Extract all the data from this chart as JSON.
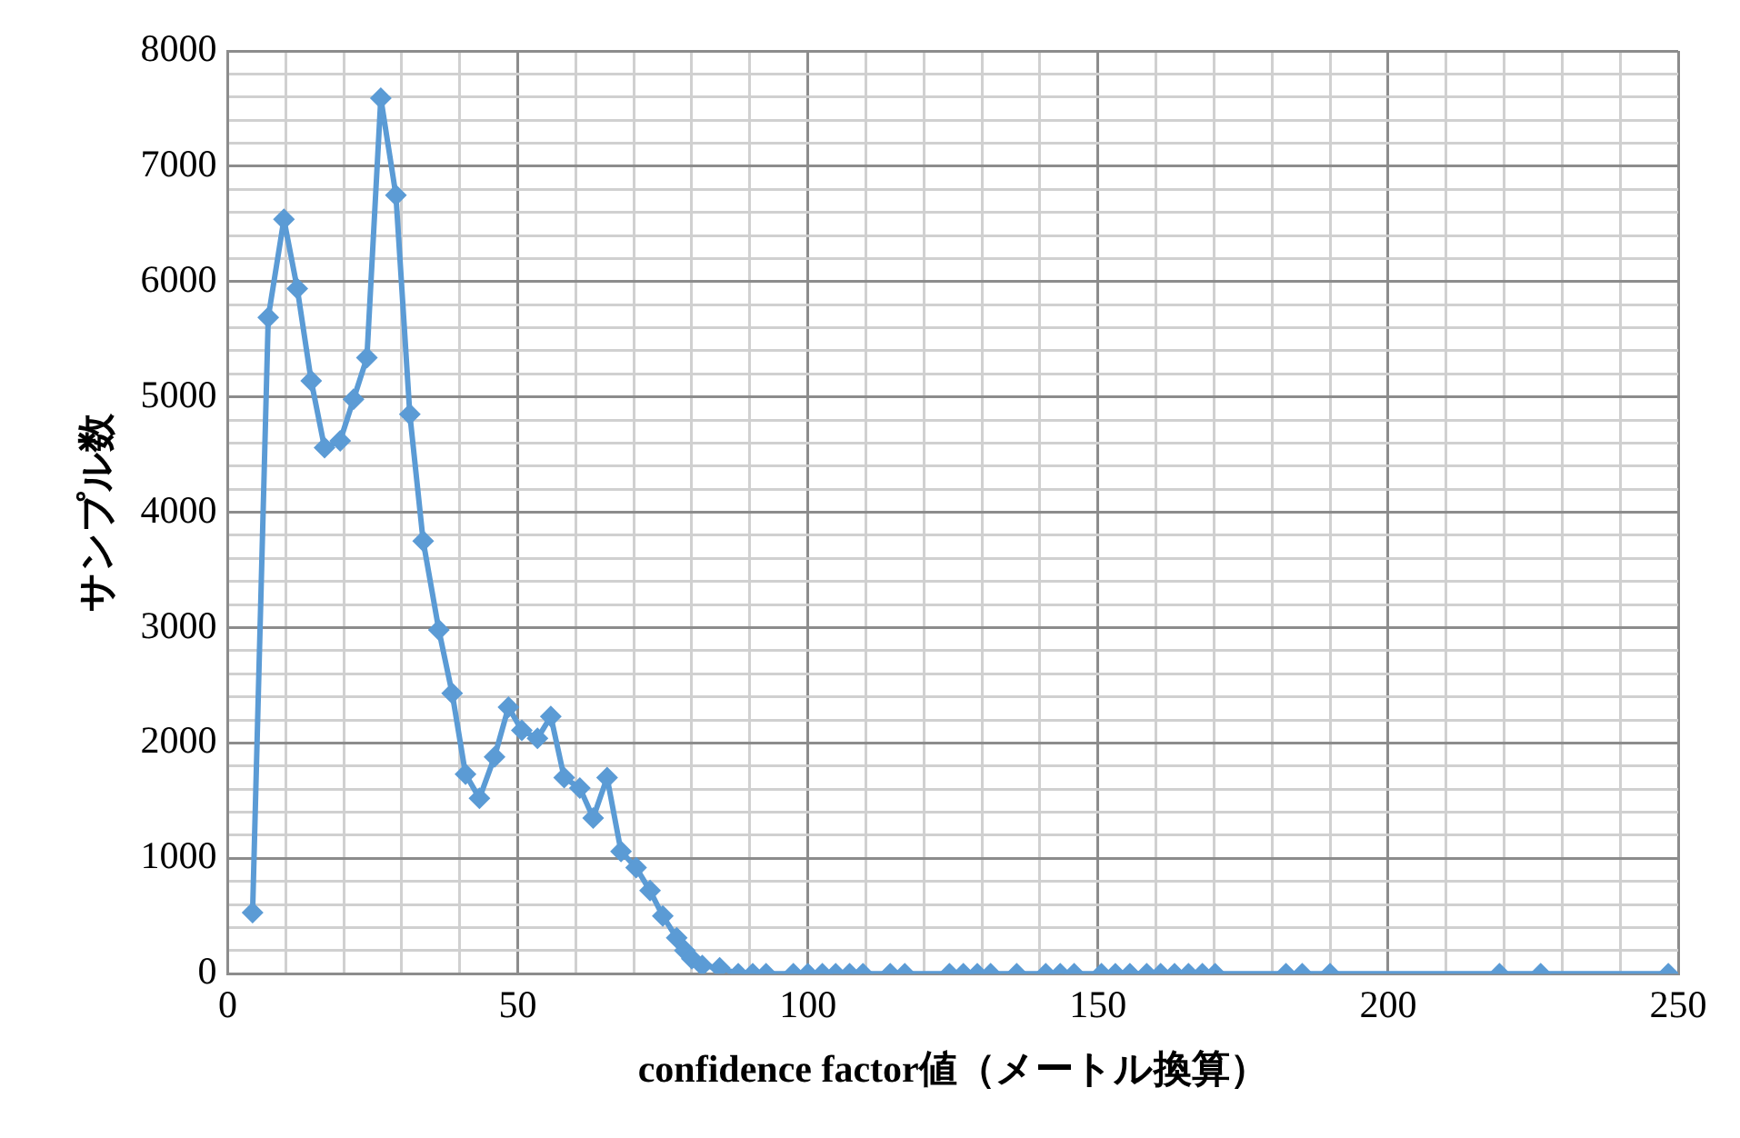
{
  "chart_data": {
    "type": "line",
    "xlabel": "confidence factor値（メートル換算）",
    "ylabel": "サンプル数",
    "x": [
      4.3,
      7,
      9.7,
      12,
      14.4,
      16.7,
      19.4,
      21.7,
      24,
      26.4,
      29,
      31.4,
      33.7,
      36.4,
      38.7,
      41,
      43.4,
      46,
      48.4,
      50.7,
      53.4,
      55.7,
      58,
      60.7,
      63,
      65.4,
      67.8,
      70.4,
      72.8,
      75,
      77.4,
      78.8,
      80,
      81.8,
      84.8,
      88,
      90.5,
      92.8,
      97.5,
      100,
      102.5,
      104.8,
      107.2,
      109.5,
      114.2,
      116.7,
      124.4,
      126.8,
      129.2,
      131.5,
      136,
      141,
      143.5,
      145.9,
      150.6,
      153,
      155.5,
      158.4,
      160.8,
      163.2,
      165.6,
      168,
      170.2,
      182.4,
      185.2,
      190,
      219.2,
      226.3,
      248.3
    ],
    "series": [
      {
        "color": "#5b9bd5",
        "values": [
          530,
          5690,
          6540,
          5940,
          5140,
          4560,
          4620,
          4980,
          5340,
          7590,
          6750,
          4850,
          3750,
          2980,
          2430,
          1730,
          1520,
          1880,
          2310,
          2110,
          2040,
          2230,
          1700,
          1610,
          1350,
          1700,
          1060,
          920,
          720,
          500,
          310,
          200,
          130,
          70,
          50,
          0,
          0,
          0,
          0,
          0,
          0,
          0,
          0,
          0,
          0,
          0,
          0,
          0,
          0,
          0,
          0,
          0,
          0,
          0,
          0,
          0,
          0,
          0,
          0,
          0,
          0,
          0,
          0,
          0,
          0,
          0,
          0,
          0,
          0
        ]
      }
    ],
    "xlim": [
      0,
      250
    ],
    "xticks": [
      0,
      {
        "value": 10,
        "label": null
      },
      {
        "value": 20,
        "label": null
      },
      {
        "value": 30,
        "label": null
      },
      {
        "value": 40,
        "label": null
      },
      50,
      {
        "value": 60,
        "label": null
      },
      {
        "value": 70,
        "label": null
      },
      {
        "value": 80,
        "label": null
      },
      {
        "value": 90,
        "label": null
      },
      100,
      {
        "value": 110,
        "label": null
      },
      {
        "value": 120,
        "label": null
      },
      {
        "value": 130,
        "label": null
      },
      {
        "value": 140,
        "label": null
      },
      150,
      {
        "value": 160,
        "label": null
      },
      {
        "value": 170,
        "label": null
      },
      {
        "value": 180,
        "label": null
      },
      {
        "value": 190,
        "label": null
      },
      200,
      {
        "value": 210,
        "label": null
      },
      {
        "value": 220,
        "label": null
      },
      {
        "value": 230,
        "label": null
      },
      {
        "value": 240,
        "label": null
      },
      250
    ],
    "ylim": [
      0,
      8000
    ],
    "yticks": [
      0,
      {
        "value": 200,
        "label": null
      },
      {
        "value": 400,
        "label": null
      },
      {
        "value": 600,
        "label": null
      },
      {
        "value": 800,
        "label": null
      },
      1000,
      {
        "value": 1200,
        "label": null
      },
      {
        "value": 1400,
        "label": null
      },
      {
        "value": 1600,
        "label": null
      },
      {
        "value": 1800,
        "label": null
      },
      2000,
      {
        "value": 2200,
        "label": null
      },
      {
        "value": 2400,
        "label": null
      },
      {
        "value": 2600,
        "label": null
      },
      {
        "value": 2800,
        "label": null
      },
      3000,
      {
        "value": 3200,
        "label": null
      },
      {
        "value": 3400,
        "label": null
      },
      {
        "value": 3600,
        "label": null
      },
      {
        "value": 3800,
        "label": null
      },
      4000,
      {
        "value": 4200,
        "label": null
      },
      {
        "value": 4400,
        "label": null
      },
      {
        "value": 4600,
        "label": null
      },
      {
        "value": 4800,
        "label": null
      },
      5000,
      {
        "value": 5200,
        "label": null
      },
      {
        "value": 5400,
        "label": null
      },
      {
        "value": 5600,
        "label": null
      },
      {
        "value": 5800,
        "label": null
      },
      6000,
      {
        "value": 6200,
        "label": null
      },
      {
        "value": 6400,
        "label": null
      },
      {
        "value": 6600,
        "label": null
      },
      {
        "value": 6800,
        "label": null
      },
      7000,
      {
        "value": 7200,
        "label": null
      },
      {
        "value": 7400,
        "label": null
      },
      {
        "value": 7600,
        "label": null
      },
      {
        "value": 7800,
        "label": null
      },
      8000
    ],
    "grid": true,
    "legend": false,
    "marker": "diamond",
    "line_style": "solid"
  }
}
